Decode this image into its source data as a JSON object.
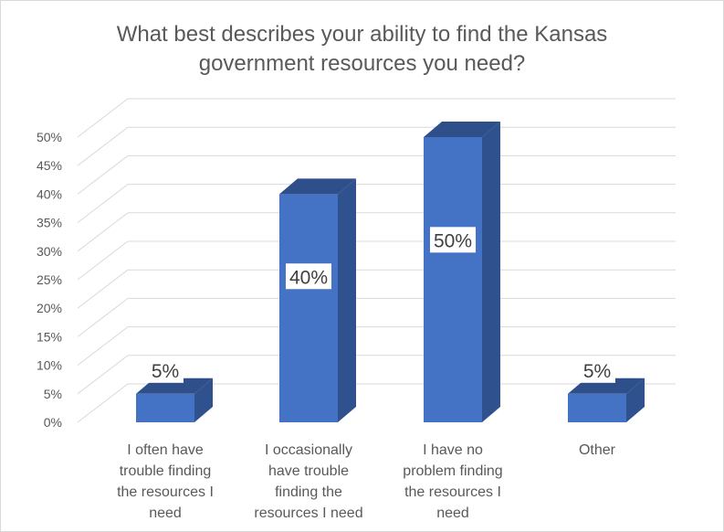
{
  "chart_data": {
    "type": "bar",
    "title_lines": [
      "What best describes your ability to find the Kansas",
      "government resources you need?"
    ],
    "categories": [
      [
        "I often have",
        "trouble finding",
        "the resources I",
        "need"
      ],
      [
        "I occasionally",
        "have trouble",
        "finding the",
        "resources I need"
      ],
      [
        "I have no",
        "problem finding",
        "the resources I",
        "need"
      ],
      [
        "Other"
      ]
    ],
    "values": [
      5,
      40,
      50,
      5
    ],
    "data_labels": [
      "5%",
      "40%",
      "50%",
      "5%"
    ],
    "yticks": [
      "0%",
      "5%",
      "10%",
      "15%",
      "20%",
      "25%",
      "30%",
      "35%",
      "40%",
      "45%",
      "50%"
    ],
    "ylim": [
      0,
      50
    ],
    "grid": true,
    "three_d": true,
    "bar_color": "#4472c4",
    "bar_side_color": "#2f528f",
    "bar_top_color": "#2e4f8a"
  }
}
